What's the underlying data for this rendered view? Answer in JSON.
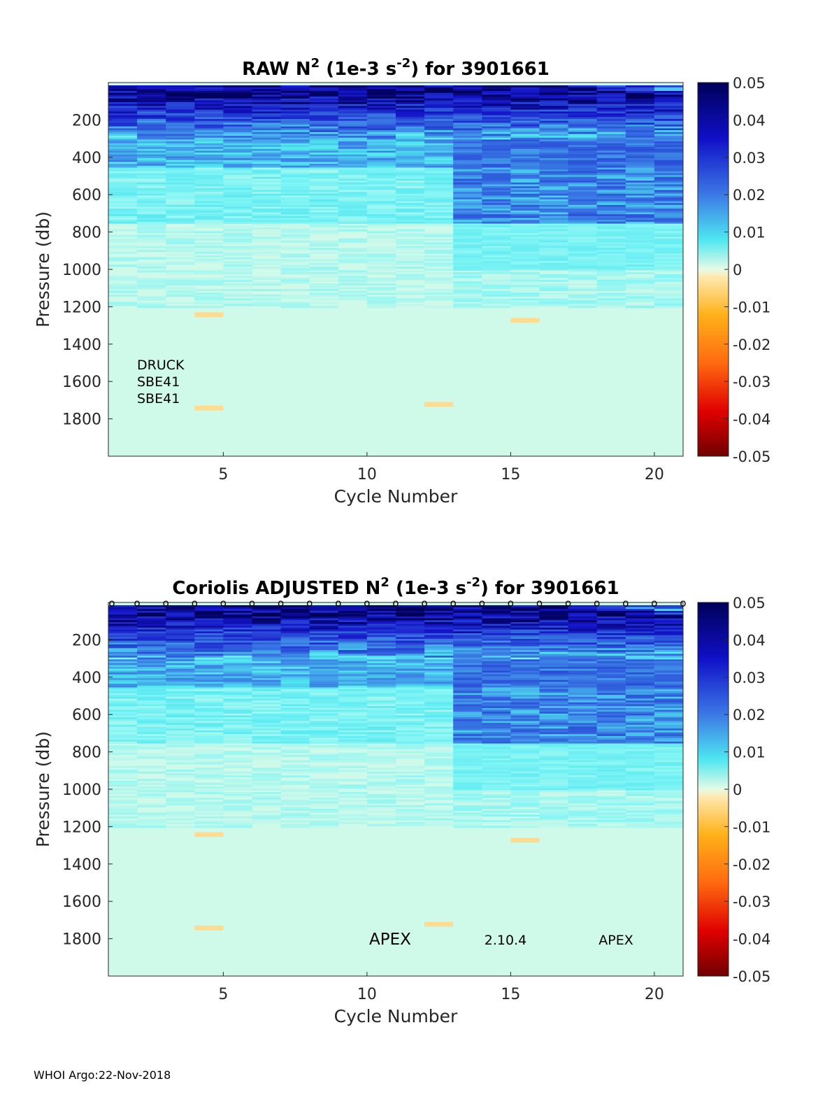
{
  "footer": "WHOI Argo:22-Nov-2018",
  "chart_data": [
    {
      "type": "heatmap",
      "title": "RAW N2 (1e-3 s-2) for 3901661",
      "title_parts": {
        "prefix": "RAW N",
        "sup1": "2",
        "mid": " (1e-3 s",
        "sup2": "-2",
        "suffix": ") for 3901661"
      },
      "xlabel": "Cycle Number",
      "ylabel": "Pressure (db)",
      "xlim": [
        1,
        21
      ],
      "ylim": [
        2000,
        0
      ],
      "xticks": [
        "5",
        "10",
        "15",
        "20"
      ],
      "yticks": [
        "200",
        "400",
        "600",
        "800",
        "1000",
        "1200",
        "1400",
        "1600",
        "1800"
      ],
      "colorbar": {
        "min": -0.05,
        "max": 0.05,
        "ticks": [
          "0.05",
          "0.04",
          "0.03",
          "0.02",
          "0.01",
          "0",
          "-0.01",
          "-0.02",
          "-0.03",
          "-0.04",
          "-0.05"
        ],
        "colormap": "blue-cyan-white-yellow-red"
      },
      "annotations": [
        "DRUCK",
        "SBE41",
        "SBE41"
      ],
      "markers": [],
      "cycles": 20
    },
    {
      "type": "heatmap",
      "title": "Coriolis ADJUSTED N2 (1e-3 s-2) for 3901661",
      "title_parts": {
        "prefix": "Coriolis  ADJUSTED N",
        "sup1": "2",
        "mid": " (1e-3 s",
        "sup2": "-2",
        "suffix": ") for 3901661"
      },
      "xlabel": "Cycle Number",
      "ylabel": "Pressure (db)",
      "xlim": [
        1,
        21
      ],
      "ylim": [
        2000,
        0
      ],
      "xticks": [
        "5",
        "10",
        "15",
        "20"
      ],
      "yticks": [
        "200",
        "400",
        "600",
        "800",
        "1000",
        "1200",
        "1400",
        "1600",
        "1800"
      ],
      "colorbar": {
        "min": -0.05,
        "max": 0.05,
        "ticks": [
          "0.05",
          "0.04",
          "0.03",
          "0.02",
          "0.01",
          "0",
          "-0.01",
          "-0.02",
          "-0.03",
          "-0.04",
          "-0.05"
        ],
        "colormap": "blue-cyan-white-yellow-red"
      },
      "annotations": [
        "APEX",
        "2.10.4",
        "APEX"
      ],
      "markers": [
        "o",
        "o",
        "o",
        "o",
        "o",
        "o",
        "o",
        "o",
        "o",
        "o",
        "o",
        "o",
        "o",
        "o",
        "o",
        "o",
        "o",
        "o",
        "o",
        "o",
        "o"
      ],
      "cycles": 20
    }
  ]
}
